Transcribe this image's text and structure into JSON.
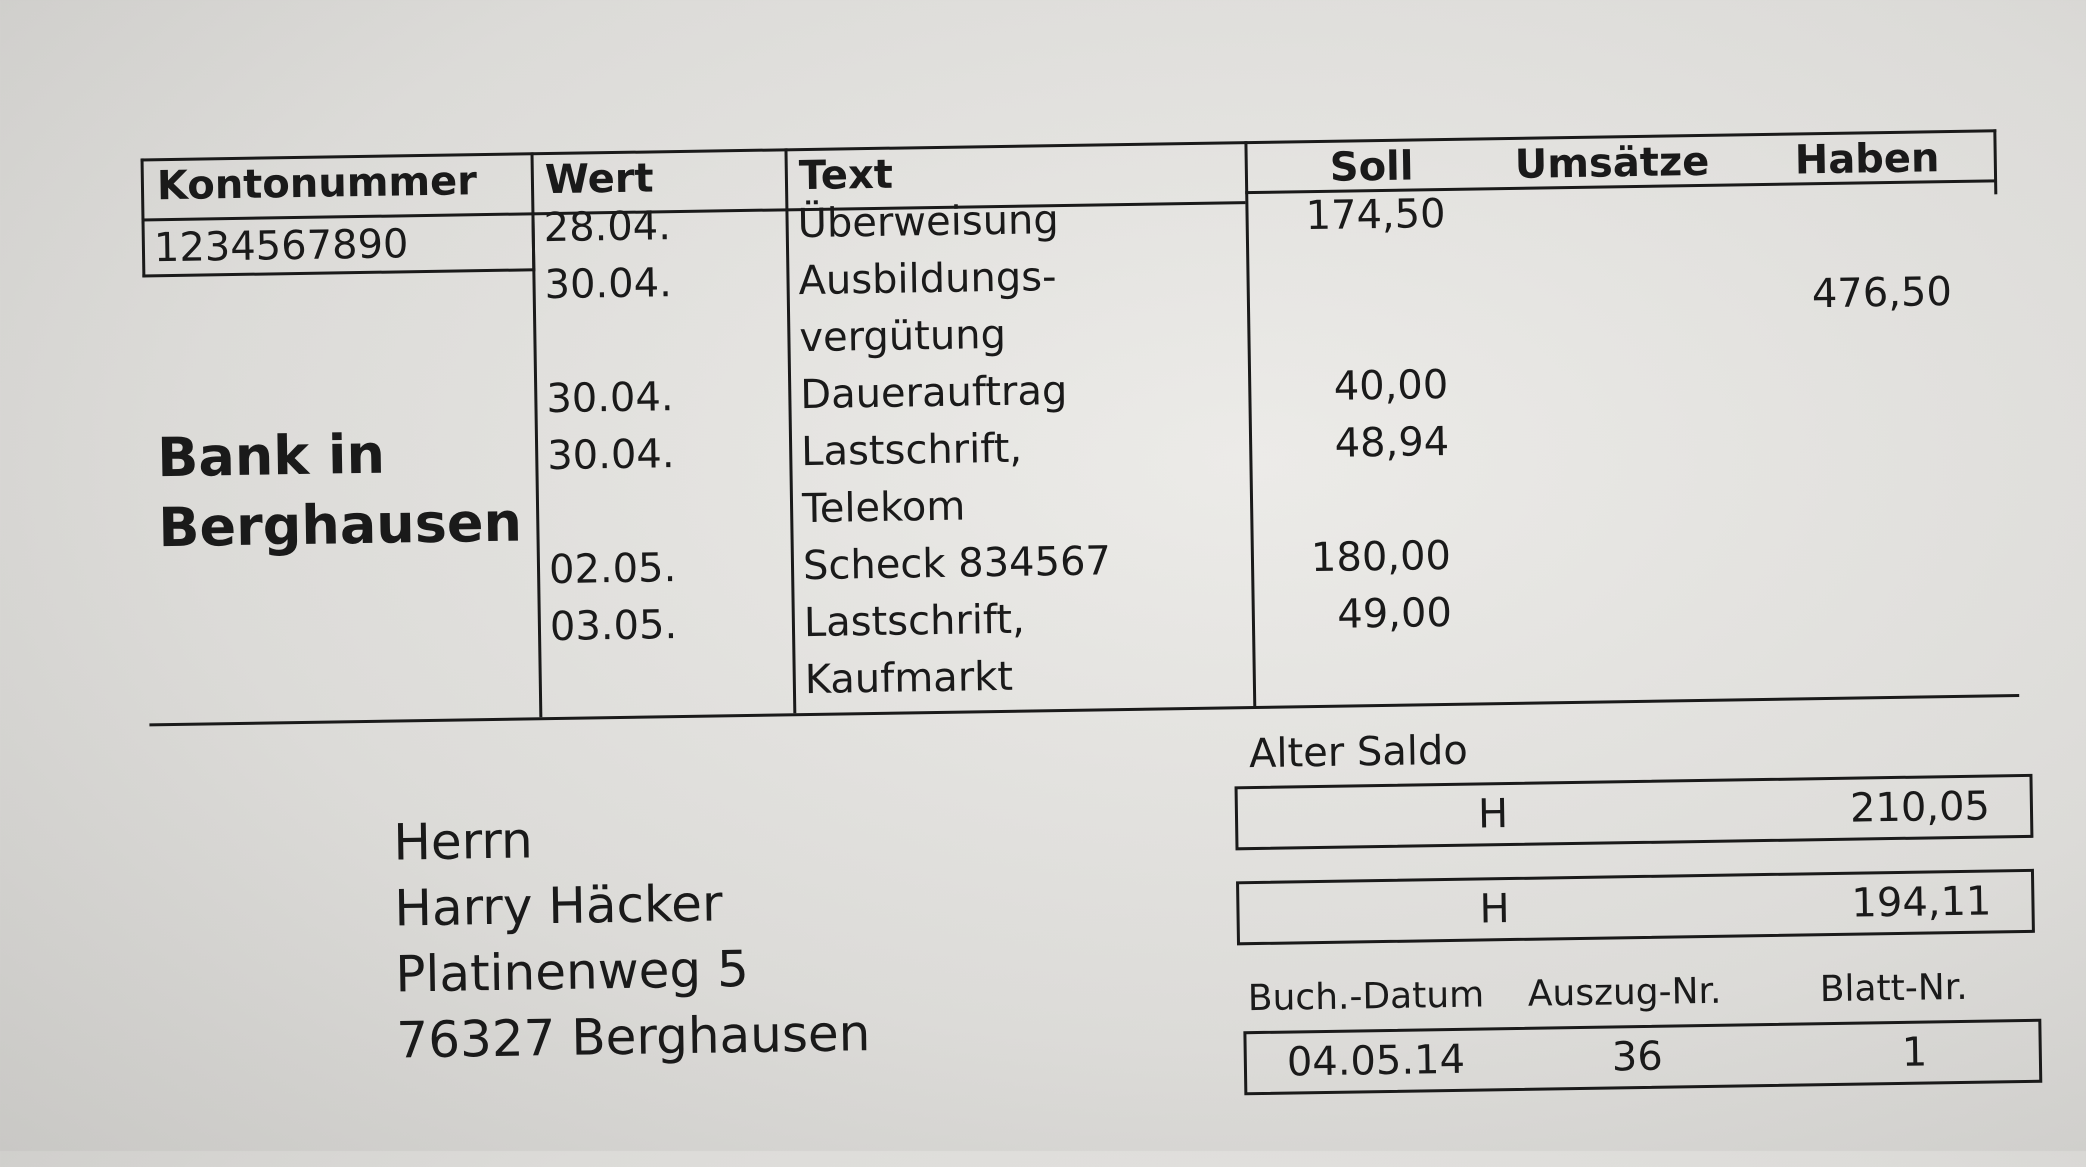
{
  "table": {
    "headers": {
      "account": "Kontonummer",
      "value_date": "Wert",
      "text": "Text",
      "debit": "Soll",
      "turnover": "Umsätze",
      "credit": "Haben"
    },
    "account_number": "1234567890",
    "bank_name": [
      "Bank in",
      "Berghausen"
    ],
    "rows": [
      {
        "date": "28.04.",
        "text": [
          "Überweisung"
        ],
        "debit": "174,50",
        "credit": ""
      },
      {
        "date": "30.04.",
        "text": [
          "Ausbildungs-",
          "vergütung"
        ],
        "debit": "",
        "credit": "476,50"
      },
      {
        "date": "30.04.",
        "text": [
          "Dauerauftrag"
        ],
        "debit": "40,00",
        "credit": ""
      },
      {
        "date": "30.04.",
        "text": [
          "Lastschrift,",
          "Telekom"
        ],
        "debit": "48,94",
        "credit": ""
      },
      {
        "date": "02.05.",
        "text": [
          "Scheck 834567"
        ],
        "debit": "180,00",
        "credit": ""
      },
      {
        "date": "03.05.",
        "text": [
          "Lastschrift,",
          "Kaufmarkt"
        ],
        "debit": "49,00",
        "credit": ""
      }
    ]
  },
  "address": [
    "Herrn",
    "Harry Häcker",
    "Platinenweg 5",
    "76327 Berghausen"
  ],
  "balance": {
    "old_label": "Alter Saldo",
    "old_type": "H",
    "old_value": "210,05",
    "new_type": "H",
    "new_value": "194,11"
  },
  "footer": {
    "labels": {
      "date": "Buch.-Datum",
      "statement": "Auszug-Nr.",
      "sheet": "Blatt-Nr."
    },
    "date": "04.05.14",
    "statement": "36",
    "sheet": "1"
  }
}
